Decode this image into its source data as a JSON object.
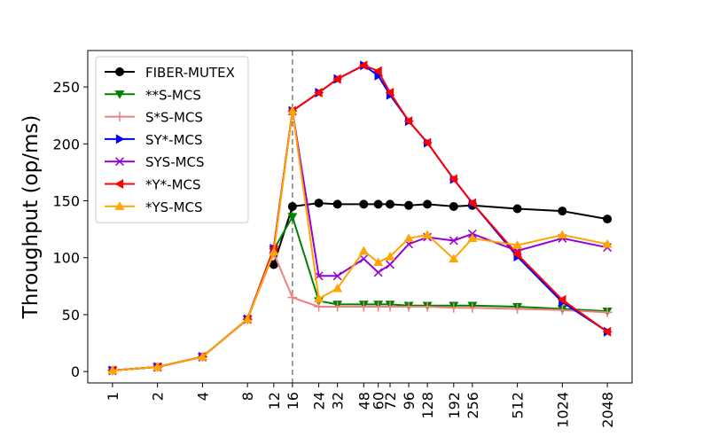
{
  "chart_data": {
    "type": "line",
    "title": "",
    "xlabel": "",
    "ylabel": "Throughput (op/ms)",
    "x_scale": "log2",
    "x_ticks": [
      1,
      2,
      4,
      8,
      12,
      16,
      24,
      32,
      48,
      60,
      72,
      96,
      128,
      192,
      256,
      512,
      1024,
      2048
    ],
    "x_tick_labels": [
      "1",
      "2",
      "4",
      "8",
      "12",
      "16",
      "24",
      "32",
      "48",
      "60",
      "72",
      "96",
      "128",
      "192",
      "256",
      "512",
      "1024",
      "2048"
    ],
    "y_ticks": [
      0,
      50,
      100,
      150,
      200,
      250
    ],
    "y_tick_labels": [
      "0",
      "50",
      "100",
      "150",
      "200",
      "250"
    ],
    "ylim": [
      -10,
      282
    ],
    "grid": false,
    "legend_position": "upper-left",
    "vertical_reference_line": {
      "x": 16,
      "style": "dashed",
      "color": "#808080"
    },
    "series": [
      {
        "name": "FIBER-MUTEX",
        "color": "#000000",
        "marker": "circle",
        "points": [
          [
            12,
            94
          ],
          [
            16,
            145
          ],
          [
            24,
            148
          ],
          [
            32,
            147
          ],
          [
            48,
            147
          ],
          [
            60,
            147
          ],
          [
            72,
            147
          ],
          [
            96,
            146
          ],
          [
            128,
            147
          ],
          [
            192,
            145
          ],
          [
            256,
            146
          ],
          [
            512,
            143
          ],
          [
            1024,
            141
          ],
          [
            2048,
            134
          ]
        ]
      },
      {
        "name": "**S-MCS",
        "color": "#008000",
        "marker": "triangle-down",
        "points": [
          [
            1,
            1
          ],
          [
            2,
            4
          ],
          [
            4,
            13
          ],
          [
            8,
            46
          ],
          [
            12,
            107
          ],
          [
            16,
            136
          ],
          [
            24,
            62
          ],
          [
            32,
            59
          ],
          [
            48,
            59
          ],
          [
            60,
            59
          ],
          [
            72,
            59
          ],
          [
            96,
            58
          ],
          [
            128,
            58
          ],
          [
            192,
            58
          ],
          [
            256,
            58
          ],
          [
            512,
            57
          ],
          [
            1024,
            55
          ],
          [
            2048,
            53
          ]
        ]
      },
      {
        "name": "S*S-MCS",
        "color": "#f08080",
        "marker": "plus",
        "points": [
          [
            1,
            1
          ],
          [
            2,
            4
          ],
          [
            4,
            13
          ],
          [
            8,
            46
          ],
          [
            12,
            104
          ],
          [
            16,
            65
          ],
          [
            24,
            57
          ],
          [
            32,
            57
          ],
          [
            48,
            57
          ],
          [
            60,
            57
          ],
          [
            72,
            57
          ],
          [
            96,
            57
          ],
          [
            128,
            57
          ],
          [
            192,
            56
          ],
          [
            256,
            56
          ],
          [
            512,
            55
          ],
          [
            1024,
            54
          ],
          [
            2048,
            52
          ]
        ]
      },
      {
        "name": "SY*-MCS",
        "color": "#0000ff",
        "marker": "triangle-right",
        "points": [
          [
            1,
            1
          ],
          [
            2,
            4
          ],
          [
            4,
            13
          ],
          [
            8,
            46
          ],
          [
            12,
            108
          ],
          [
            16,
            229
          ],
          [
            24,
            245
          ],
          [
            32,
            257
          ],
          [
            48,
            269
          ],
          [
            60,
            260
          ],
          [
            72,
            243
          ],
          [
            96,
            220
          ],
          [
            128,
            201
          ],
          [
            192,
            169
          ],
          [
            256,
            148
          ],
          [
            512,
            101
          ],
          [
            1024,
            61
          ],
          [
            2048,
            35
          ]
        ]
      },
      {
        "name": "SYS-MCS",
        "color": "#9400d3",
        "marker": "x",
        "points": [
          [
            1,
            1
          ],
          [
            2,
            4
          ],
          [
            4,
            13
          ],
          [
            8,
            46
          ],
          [
            12,
            108
          ],
          [
            16,
            229
          ],
          [
            24,
            84
          ],
          [
            32,
            84
          ],
          [
            48,
            99
          ],
          [
            60,
            87
          ],
          [
            72,
            94
          ],
          [
            96,
            112
          ],
          [
            128,
            118
          ],
          [
            192,
            115
          ],
          [
            256,
            121
          ],
          [
            512,
            106
          ],
          [
            1024,
            117
          ],
          [
            2048,
            109
          ]
        ]
      },
      {
        "name": "*Y*-MCS",
        "color": "#ff0000",
        "marker": "triangle-left",
        "points": [
          [
            1,
            1
          ],
          [
            2,
            4
          ],
          [
            4,
            13
          ],
          [
            8,
            46
          ],
          [
            12,
            108
          ],
          [
            16,
            229
          ],
          [
            24,
            245
          ],
          [
            32,
            257
          ],
          [
            48,
            269
          ],
          [
            60,
            264
          ],
          [
            72,
            245
          ],
          [
            96,
            220
          ],
          [
            128,
            201
          ],
          [
            192,
            169
          ],
          [
            256,
            148
          ],
          [
            512,
            103
          ],
          [
            1024,
            63
          ],
          [
            2048,
            35
          ]
        ]
      },
      {
        "name": "*YS-MCS",
        "color": "#ffa500",
        "marker": "triangle-up",
        "points": [
          [
            1,
            1
          ],
          [
            2,
            4
          ],
          [
            4,
            13
          ],
          [
            8,
            46
          ],
          [
            12,
            105
          ],
          [
            16,
            229
          ],
          [
            24,
            64
          ],
          [
            32,
            73
          ],
          [
            48,
            106
          ],
          [
            60,
            96
          ],
          [
            72,
            101
          ],
          [
            96,
            117
          ],
          [
            128,
            120
          ],
          [
            192,
            99
          ],
          [
            256,
            117
          ],
          [
            512,
            111
          ],
          [
            1024,
            120
          ],
          [
            2048,
            112
          ]
        ]
      }
    ]
  }
}
